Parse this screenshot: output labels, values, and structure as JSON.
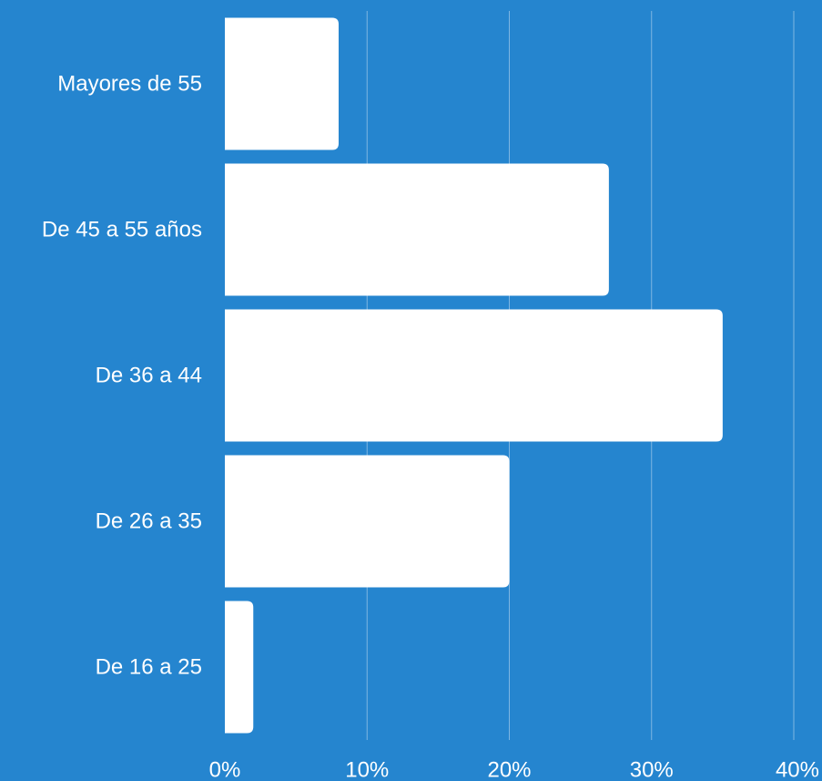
{
  "colors": {
    "background": "#2585cf",
    "bar": "#ffffff",
    "text": "#ffffff",
    "grid": "#7fb6e2"
  },
  "chart_data": {
    "type": "bar",
    "orientation": "horizontal",
    "title": "",
    "xlabel": "",
    "ylabel": "",
    "categories": [
      "Mayores de 55",
      "De 45 a 55 años",
      "De 36 a 44",
      "De 26 a 35",
      "De 16 a 25"
    ],
    "values": [
      8,
      27,
      35,
      20,
      2
    ],
    "unit": "%",
    "xlim": [
      0,
      40
    ],
    "x_ticks": [
      0,
      10,
      20,
      30,
      40
    ],
    "x_tick_labels": [
      "0%",
      "10%",
      "20%",
      "30%",
      "40%"
    ],
    "grid": true
  }
}
